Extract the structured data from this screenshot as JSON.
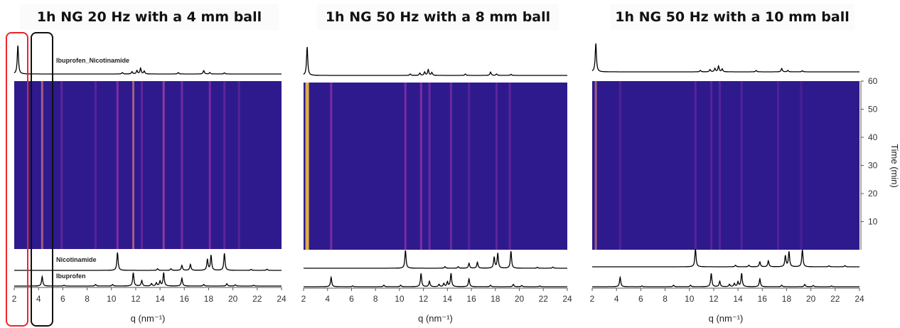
{
  "chart_data": [
    {
      "type": "heatmap",
      "title": "1h NG 20 Hz with a 4 mm ball",
      "xlabel": "q (nm⁻¹)",
      "xlim": [
        2,
        24
      ],
      "x_ticks": [
        2,
        4,
        6,
        8,
        10,
        12,
        14,
        16,
        18,
        20,
        22,
        24
      ],
      "traces": [
        "Ibuprofen_Nicotinamide",
        "Nicotinamide",
        "Ibuprofen"
      ],
      "heatmap_lines": [
        {
          "q": 4.3,
          "i": 0.75
        },
        {
          "q": 5.9,
          "i": 0.35
        },
        {
          "q": 8.7,
          "i": 0.3
        },
        {
          "q": 10.5,
          "i": 0.6
        },
        {
          "q": 11.8,
          "i": 0.75
        },
        {
          "q": 12.5,
          "i": 0.35
        },
        {
          "q": 14.3,
          "i": 0.65
        },
        {
          "q": 15.8,
          "i": 0.5
        },
        {
          "q": 18.1,
          "i": 0.55
        },
        {
          "q": 19.3,
          "i": 0.35
        },
        {
          "q": 20.5,
          "i": 0.3
        }
      ]
    },
    {
      "type": "heatmap",
      "title": "1h NG 50 Hz with a 8 mm ball",
      "xlabel": "q (nm⁻¹)",
      "xlim": [
        2,
        24
      ],
      "x_ticks": [
        2,
        4,
        6,
        8,
        10,
        12,
        14,
        16,
        18,
        20,
        22,
        24
      ],
      "heatmap_lines": [
        {
          "q": 2.3,
          "i": 1.0
        },
        {
          "q": 4.3,
          "i": 0.55
        },
        {
          "q": 10.5,
          "i": 0.55
        },
        {
          "q": 11.8,
          "i": 0.6
        },
        {
          "q": 12.5,
          "i": 0.45
        },
        {
          "q": 14.3,
          "i": 0.45
        },
        {
          "q": 15.8,
          "i": 0.3
        },
        {
          "q": 18.1,
          "i": 0.35
        },
        {
          "q": 19.2,
          "i": 0.35
        }
      ]
    },
    {
      "type": "heatmap",
      "title": "1h NG 50 Hz with a 10 mm ball",
      "xlabel": "q (nm⁻¹)",
      "xlim": [
        2,
        24
      ],
      "x_ticks": [
        2,
        4,
        6,
        8,
        10,
        12,
        14,
        16,
        18,
        20,
        22,
        24
      ],
      "ylabel": "Time (min)",
      "ylim": [
        0,
        60
      ],
      "y_ticks": [
        10,
        20,
        30,
        40,
        50,
        60
      ],
      "heatmap_lines": [
        {
          "q": 2.3,
          "i": 0.75
        },
        {
          "q": 4.3,
          "i": 0.25
        },
        {
          "q": 10.5,
          "i": 0.3
        },
        {
          "q": 11.8,
          "i": 0.3
        },
        {
          "q": 12.5,
          "i": 0.3
        },
        {
          "q": 14.3,
          "i": 0.25
        },
        {
          "q": 17.3,
          "i": 0.25
        },
        {
          "q": 19.2,
          "i": 0.2
        }
      ]
    }
  ],
  "patterns": {
    "ibuprofen_nicotinamide": [
      [
        2.3,
        1.0
      ],
      [
        10.9,
        0.05
      ],
      [
        11.7,
        0.08
      ],
      [
        12.1,
        0.12
      ],
      [
        12.4,
        0.2
      ],
      [
        12.7,
        0.1
      ],
      [
        15.5,
        0.05
      ],
      [
        17.6,
        0.12
      ],
      [
        18.1,
        0.05
      ],
      [
        19.3,
        0.04
      ]
    ],
    "nicotinamide": [
      [
        10.5,
        0.9
      ],
      [
        13.8,
        0.08
      ],
      [
        14.9,
        0.08
      ],
      [
        15.8,
        0.25
      ],
      [
        16.5,
        0.3
      ],
      [
        17.9,
        0.55
      ],
      [
        18.2,
        0.75
      ],
      [
        19.3,
        0.85
      ],
      [
        21.5,
        0.05
      ],
      [
        22.8,
        0.06
      ]
    ],
    "ibuprofen": [
      [
        4.3,
        0.6
      ],
      [
        6.1,
        0.05
      ],
      [
        8.7,
        0.1
      ],
      [
        10.1,
        0.1
      ],
      [
        11.8,
        0.85
      ],
      [
        12.5,
        0.35
      ],
      [
        13.3,
        0.15
      ],
      [
        13.7,
        0.2
      ],
      [
        14.0,
        0.3
      ],
      [
        14.3,
        0.85
      ],
      [
        15.8,
        0.5
      ],
      [
        17.6,
        0.1
      ],
      [
        19.5,
        0.15
      ],
      [
        20.2,
        0.08
      ],
      [
        21.7,
        0.05
      ]
    ]
  },
  "colors": {
    "bg": "#2e1a8c",
    "mid": "#8a2fa8",
    "high": "#f0c040",
    "trace": "#000000",
    "red_box": "#e8262a",
    "black_box": "#111111"
  }
}
